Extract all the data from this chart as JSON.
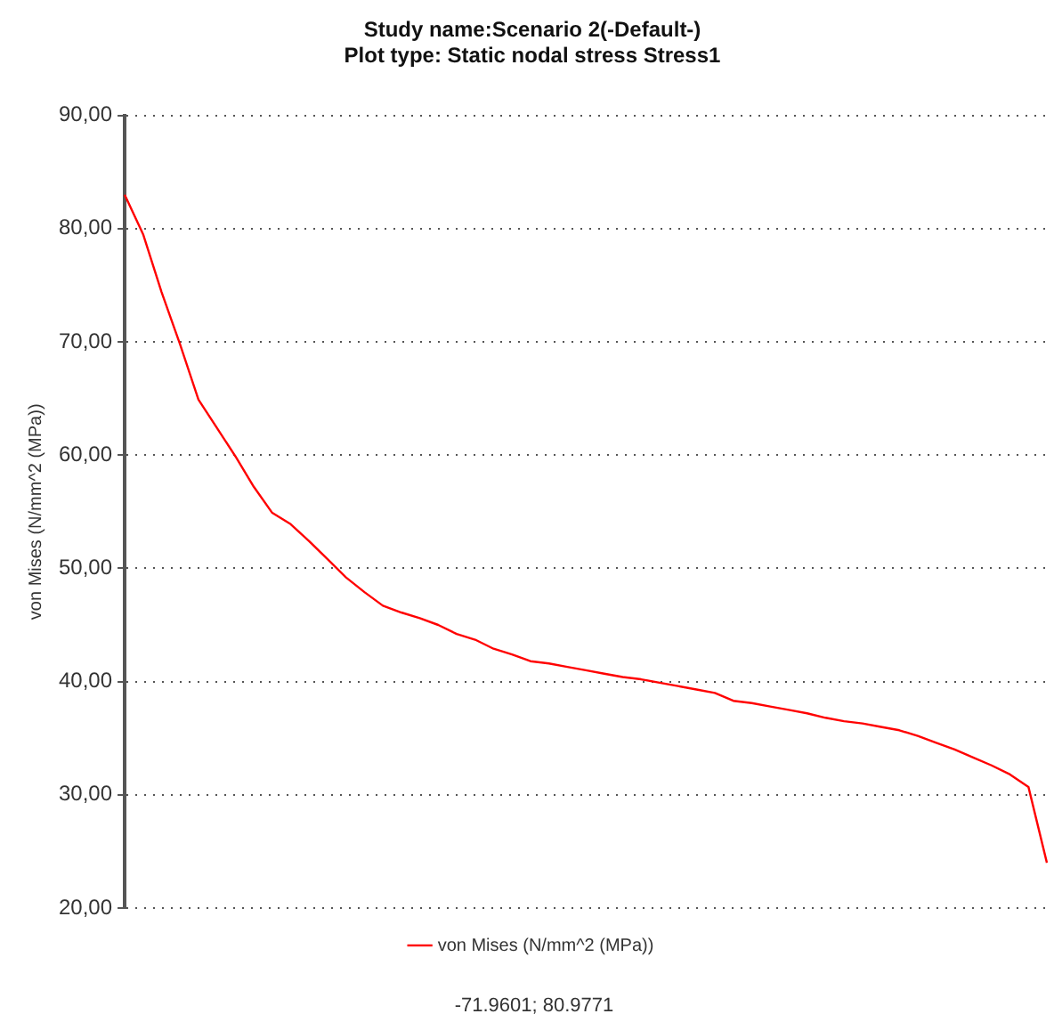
{
  "chart_data": {
    "type": "line",
    "title": "Study name:Scenario 2(-Default-)",
    "subtitle": "Plot type: Static nodal stress Stress1",
    "ylabel": "von Mises (N/mm^2 (MPa))",
    "categories": [
      null,
      null,
      null,
      null,
      null,
      null,
      null,
      null,
      null,
      null,
      null,
      null,
      null,
      null,
      null,
      null,
      null,
      null,
      null,
      null,
      null,
      null,
      null,
      null,
      null,
      null,
      null,
      null,
      null,
      null,
      null,
      null,
      null,
      null,
      null,
      null,
      null,
      null,
      null,
      null,
      null,
      null,
      null,
      null,
      null,
      null,
      null,
      null,
      null,
      null,
      null
    ],
    "series": [
      {
        "name": "von Mises (N/mm^2 (MPa))",
        "color": "#ff0000",
        "values": [
          83.0,
          79.5,
          74.4,
          69.8,
          64.9,
          62.4,
          59.9,
          57.2,
          54.9,
          53.9,
          52.4,
          50.8,
          49.2,
          47.9,
          46.7,
          46.1,
          45.6,
          45.0,
          44.2,
          43.7,
          42.9,
          42.4,
          41.8,
          41.6,
          41.3,
          41.0,
          40.7,
          40.4,
          40.2,
          39.9,
          39.6,
          39.3,
          39.0,
          38.3,
          38.1,
          37.8,
          37.5,
          37.2,
          36.8,
          36.5,
          36.3,
          36.0,
          35.7,
          35.2,
          34.6,
          34.0,
          33.3,
          32.6,
          31.8,
          30.7,
          24.0
        ]
      }
    ],
    "ylim": [
      20,
      90
    ],
    "yticks": [
      {
        "value": 20,
        "label": "20,00"
      },
      {
        "value": 30,
        "label": "30,00"
      },
      {
        "value": 40,
        "label": "40,00"
      },
      {
        "value": 50,
        "label": "50,00"
      },
      {
        "value": 60,
        "label": "60,00"
      },
      {
        "value": 70,
        "label": "70,00"
      },
      {
        "value": 80,
        "label": "80,00"
      },
      {
        "value": 90,
        "label": "90,00"
      }
    ],
    "grid": "y",
    "legend": "bottom",
    "marker": "none",
    "line_style": "solid",
    "tick_labels": "y",
    "annotations": [
      "-71.9601; 80.9771"
    ]
  }
}
